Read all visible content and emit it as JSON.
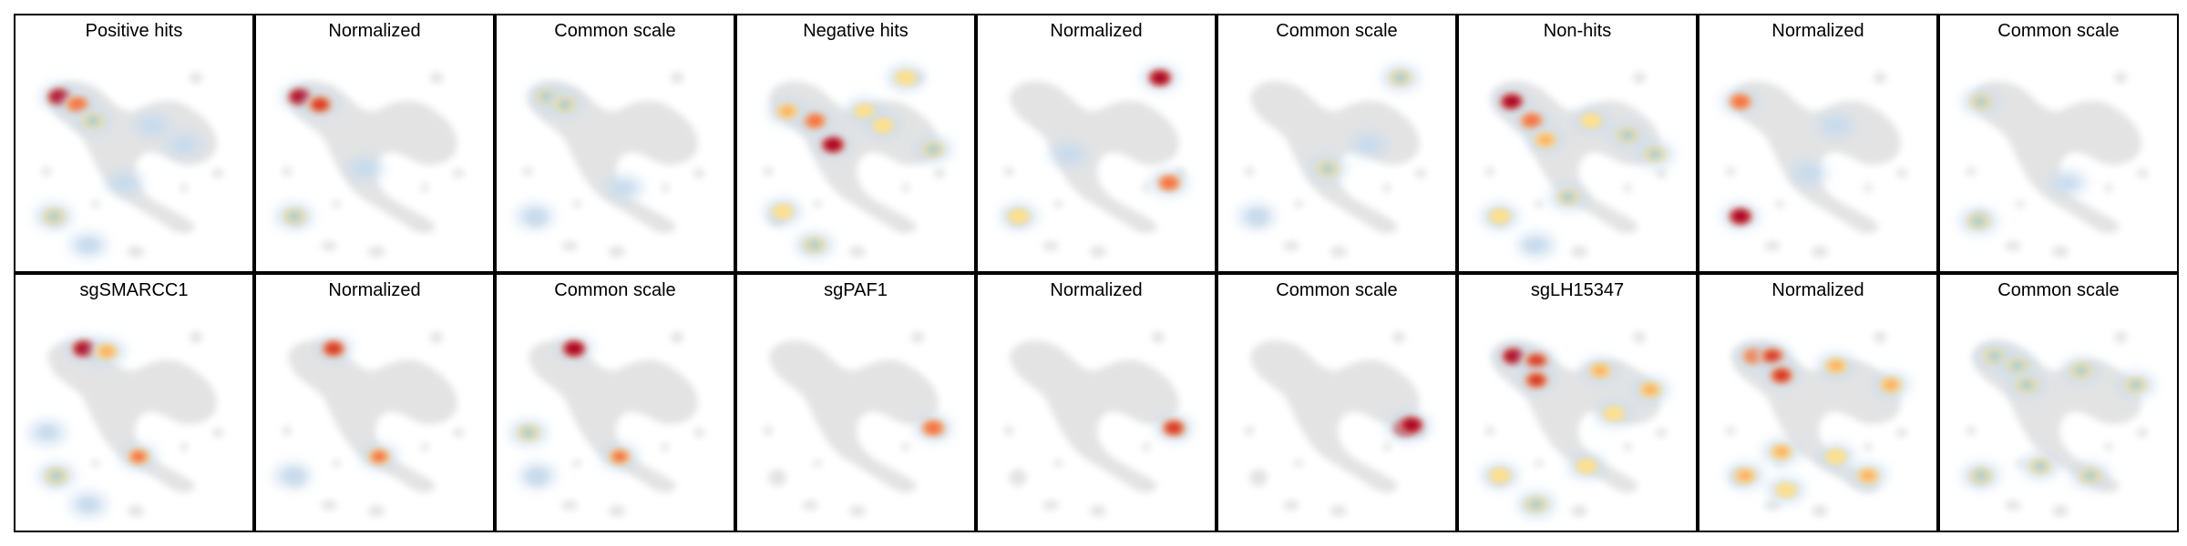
{
  "figure": {
    "rows": 2,
    "cols": 9
  },
  "chart_data": {
    "type": "heatmap",
    "description_of_panels": "density overlays on a shared embedding map",
    "panels": [
      {
        "title": "Positive hits",
        "row": 0,
        "col": 0,
        "hotspots": [
          [
            -0.82,
            0.7,
            0.95
          ],
          [
            -0.62,
            0.62,
            0.8
          ],
          [
            -0.45,
            0.45,
            0.35
          ],
          [
            -0.88,
            -0.55,
            0.3
          ],
          [
            0.2,
            0.4,
            0.25
          ],
          [
            0.55,
            0.2,
            0.25
          ],
          [
            -0.1,
            -0.2,
            0.2
          ],
          [
            -0.5,
            -0.85,
            0.2
          ]
        ]
      },
      {
        "title": "Normalized",
        "row": 0,
        "col": 1,
        "hotspots": [
          [
            -0.82,
            0.7,
            0.95
          ],
          [
            -0.6,
            0.62,
            0.85
          ],
          [
            -0.88,
            -0.55,
            0.35
          ],
          [
            -0.1,
            -0.05,
            0.2
          ]
        ]
      },
      {
        "title": "Common scale",
        "row": 0,
        "col": 2,
        "hotspots": [
          [
            -0.75,
            0.7,
            0.35
          ],
          [
            -0.55,
            0.62,
            0.3
          ],
          [
            -0.88,
            -0.55,
            0.25
          ],
          [
            0.1,
            -0.25,
            0.2
          ]
        ]
      },
      {
        "title": "Negative hits",
        "row": 0,
        "col": 3,
        "hotspots": [
          [
            -0.25,
            0.2,
            0.95
          ],
          [
            -0.45,
            0.45,
            0.75
          ],
          [
            -0.75,
            0.55,
            0.55
          ],
          [
            0.1,
            0.55,
            0.4
          ],
          [
            0.3,
            0.4,
            0.45
          ],
          [
            0.85,
            0.15,
            0.35
          ],
          [
            0.55,
            0.9,
            0.45
          ],
          [
            -0.8,
            -0.5,
            0.4
          ],
          [
            -0.45,
            -0.85,
            0.3
          ]
        ]
      },
      {
        "title": "Normalized",
        "row": 0,
        "col": 4,
        "hotspots": [
          [
            0.7,
            0.9,
            0.95
          ],
          [
            0.8,
            -0.2,
            0.75
          ],
          [
            -0.85,
            -0.55,
            0.4
          ],
          [
            -0.3,
            0.1,
            0.2
          ]
        ]
      },
      {
        "title": "Common scale",
        "row": 0,
        "col": 5,
        "hotspots": [
          [
            0.7,
            0.9,
            0.35
          ],
          [
            -0.1,
            -0.05,
            0.3
          ],
          [
            -0.88,
            -0.55,
            0.25
          ],
          [
            0.35,
            0.2,
            0.2
          ]
        ]
      },
      {
        "title": "Non-hits",
        "row": 0,
        "col": 6,
        "hotspots": [
          [
            -0.72,
            0.65,
            0.95
          ],
          [
            -0.5,
            0.45,
            0.8
          ],
          [
            -0.35,
            0.25,
            0.6
          ],
          [
            0.15,
            0.45,
            0.4
          ],
          [
            0.55,
            0.3,
            0.35
          ],
          [
            0.85,
            0.1,
            0.3
          ],
          [
            -0.85,
            -0.55,
            0.45
          ],
          [
            -0.1,
            -0.35,
            0.35
          ],
          [
            -0.45,
            -0.85,
            0.25
          ]
        ]
      },
      {
        "title": "Normalized",
        "row": 0,
        "col": 7,
        "hotspots": [
          [
            -0.85,
            0.65,
            0.75
          ],
          [
            -0.85,
            -0.55,
            0.95
          ],
          [
            0.2,
            0.4,
            0.2
          ],
          [
            -0.1,
            -0.1,
            0.25
          ]
        ]
      },
      {
        "title": "Common scale",
        "row": 0,
        "col": 8,
        "hotspots": [
          [
            -0.85,
            0.65,
            0.3
          ],
          [
            -0.88,
            -0.6,
            0.35
          ],
          [
            0.1,
            -0.2,
            0.15
          ]
        ]
      },
      {
        "title": "sgSMARCC1",
        "row": 1,
        "col": 0,
        "hotspots": [
          [
            -0.55,
            0.78,
            0.95
          ],
          [
            -0.3,
            0.75,
            0.65
          ],
          [
            0.05,
            -0.35,
            0.7
          ],
          [
            -0.95,
            -0.1,
            0.25
          ],
          [
            -0.85,
            -0.55,
            0.3
          ],
          [
            -0.5,
            -0.85,
            0.2
          ]
        ]
      },
      {
        "title": "Normalized",
        "row": 1,
        "col": 1,
        "hotspots": [
          [
            -0.45,
            0.78,
            0.9
          ],
          [
            0.05,
            -0.35,
            0.7
          ],
          [
            -0.9,
            -0.55,
            0.2
          ]
        ]
      },
      {
        "title": "Common scale",
        "row": 1,
        "col": 2,
        "hotspots": [
          [
            -0.45,
            0.78,
            1.0
          ],
          [
            0.05,
            -0.35,
            0.7
          ],
          [
            -0.95,
            -0.1,
            0.35
          ],
          [
            -0.85,
            -0.55,
            0.25
          ]
        ]
      },
      {
        "title": "sgPAF1",
        "row": 1,
        "col": 3,
        "hotspots": [
          [
            0.85,
            -0.05,
            0.8
          ]
        ]
      },
      {
        "title": "Normalized",
        "row": 1,
        "col": 4,
        "hotspots": [
          [
            0.85,
            -0.05,
            0.9
          ]
        ]
      },
      {
        "title": "Common scale",
        "row": 1,
        "col": 5,
        "hotspots": [
          [
            0.75,
            -0.05,
            1.0
          ],
          [
            0.82,
            -0.02,
            1.0
          ]
        ]
      },
      {
        "title": "sgLH15347",
        "row": 1,
        "col": 6,
        "hotspots": [
          [
            -0.7,
            0.7,
            0.95
          ],
          [
            -0.45,
            0.65,
            0.9
          ],
          [
            -0.45,
            0.45,
            0.85
          ],
          [
            0.25,
            0.55,
            0.55
          ],
          [
            0.8,
            0.35,
            0.55
          ],
          [
            0.4,
            0.1,
            0.4
          ],
          [
            -0.85,
            -0.55,
            0.45
          ],
          [
            -0.45,
            -0.85,
            0.35
          ],
          [
            0.1,
            -0.45,
            0.4
          ]
        ]
      },
      {
        "title": "Normalized",
        "row": 1,
        "col": 7,
        "hotspots": [
          [
            -0.7,
            0.7,
            0.8
          ],
          [
            -0.5,
            0.7,
            0.85
          ],
          [
            -0.4,
            0.5,
            0.9
          ],
          [
            0.2,
            0.6,
            0.55
          ],
          [
            0.8,
            0.4,
            0.6
          ],
          [
            -0.8,
            -0.55,
            0.6
          ],
          [
            -0.4,
            -0.3,
            0.55
          ],
          [
            0.2,
            -0.35,
            0.5
          ],
          [
            0.55,
            -0.55,
            0.6
          ],
          [
            -0.35,
            -0.7,
            0.4
          ]
        ]
      },
      {
        "title": "Common scale",
        "row": 1,
        "col": 8,
        "hotspots": [
          [
            -0.7,
            0.7,
            0.35
          ],
          [
            -0.45,
            0.6,
            0.35
          ],
          [
            -0.35,
            0.4,
            0.35
          ],
          [
            0.25,
            0.55,
            0.3
          ],
          [
            0.85,
            0.4,
            0.3
          ],
          [
            -0.85,
            -0.55,
            0.35
          ],
          [
            -0.2,
            -0.45,
            0.3
          ],
          [
            0.35,
            -0.55,
            0.3
          ]
        ]
      }
    ],
    "colormap": [
      "#c6dbef",
      "#9ecae1",
      "#fee08b",
      "#fdae61",
      "#f46d43",
      "#d73027",
      "#a50026"
    ]
  }
}
